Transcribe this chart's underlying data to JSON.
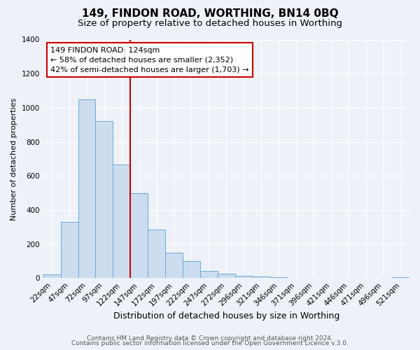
{
  "title": "149, FINDON ROAD, WORTHING, BN14 0BQ",
  "subtitle": "Size of property relative to detached houses in Worthing",
  "xlabel": "Distribution of detached houses by size in Worthing",
  "ylabel": "Number of detached properties",
  "bar_labels": [
    "22sqm",
    "47sqm",
    "72sqm",
    "97sqm",
    "122sqm",
    "147sqm",
    "172sqm",
    "197sqm",
    "222sqm",
    "247sqm",
    "272sqm",
    "296sqm",
    "321sqm",
    "346sqm",
    "371sqm",
    "396sqm",
    "421sqm",
    "446sqm",
    "471sqm",
    "496sqm",
    "521sqm"
  ],
  "bar_values": [
    20,
    330,
    1050,
    920,
    665,
    500,
    285,
    148,
    100,
    40,
    25,
    15,
    10,
    5,
    0,
    0,
    0,
    0,
    0,
    0,
    5
  ],
  "bar_color": "#ccddf0",
  "bar_edge_color": "#6aaad4",
  "vline_color": "#cc0000",
  "vline_lw": 1.5,
  "annotation_text": "149 FINDON ROAD: 124sqm\n← 58% of detached houses are smaller (2,352)\n42% of semi-detached houses are larger (1,703) →",
  "annotation_box_color": "white",
  "annotation_box_edge_color": "#cc0000",
  "ylim": [
    0,
    1400
  ],
  "yticks": [
    0,
    200,
    400,
    600,
    800,
    1000,
    1200,
    1400
  ],
  "footer1": "Contains HM Land Registry data © Crown copyright and database right 2024.",
  "footer2": "Contains public sector information licensed under the Open Government Licence v.3.0.",
  "bg_color": "#eef2f8",
  "plot_bg_color": "#eef2f8",
  "grid_color": "white",
  "title_fontsize": 11,
  "subtitle_fontsize": 9.5,
  "xlabel_fontsize": 9,
  "ylabel_fontsize": 8,
  "tick_fontsize": 7.5,
  "annotation_fontsize": 8,
  "footer_fontsize": 6.5
}
